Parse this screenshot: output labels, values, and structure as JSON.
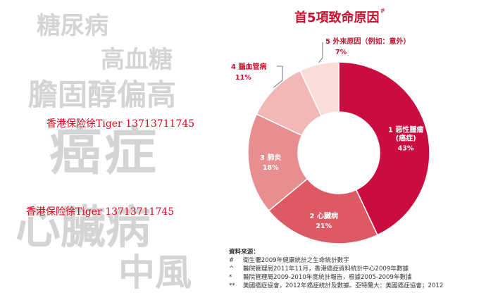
{
  "background_words": [
    "糖尿病",
    "高血糖",
    "膽固醇偏高",
    "癌症",
    "心臟病",
    "中風"
  ],
  "watermarks": [
    "香港保险徐Tiger 13713711745",
    "香港保险徐Tiger 13713711745"
  ],
  "title": "首5項致命原因",
  "title_mark": "#",
  "colors": {
    "accent": "#c8102e"
  },
  "chart_data": {
    "type": "pie",
    "title": "首5項致命原因",
    "donut": true,
    "labels": [
      "1 惡性腫瘤 (癌症)",
      "2 心臟病",
      "3 肺炎",
      "4 腦血管病",
      "5 外來原因（例如：意外）"
    ],
    "values": [
      43,
      21,
      18,
      11,
      7
    ],
    "value_labels": [
      "43%",
      "21%",
      "18%",
      "11%",
      "7%"
    ],
    "colors": [
      "#cb0c3f",
      "#dd5a65",
      "#e88e90",
      "#f2b8b8",
      "#fadcd8"
    ]
  },
  "source": {
    "heading": "資料來源：",
    "notes": [
      {
        "mark": "#",
        "text": "衛生署2009年健康統計之生命統計數字"
      },
      {
        "mark": "^",
        "text": "醫院管理局2011年11月，香港癌症資料統計中心2009年數據"
      },
      {
        "mark": "*",
        "text": "醫院管理局2009-2010年度統計報告，根據2005-2009年數據"
      },
      {
        "mark": "**",
        "text": "美國癌症協會，2012年癌症統計及數據。亞特蘭大：美國癌症協會；2012"
      }
    ]
  }
}
